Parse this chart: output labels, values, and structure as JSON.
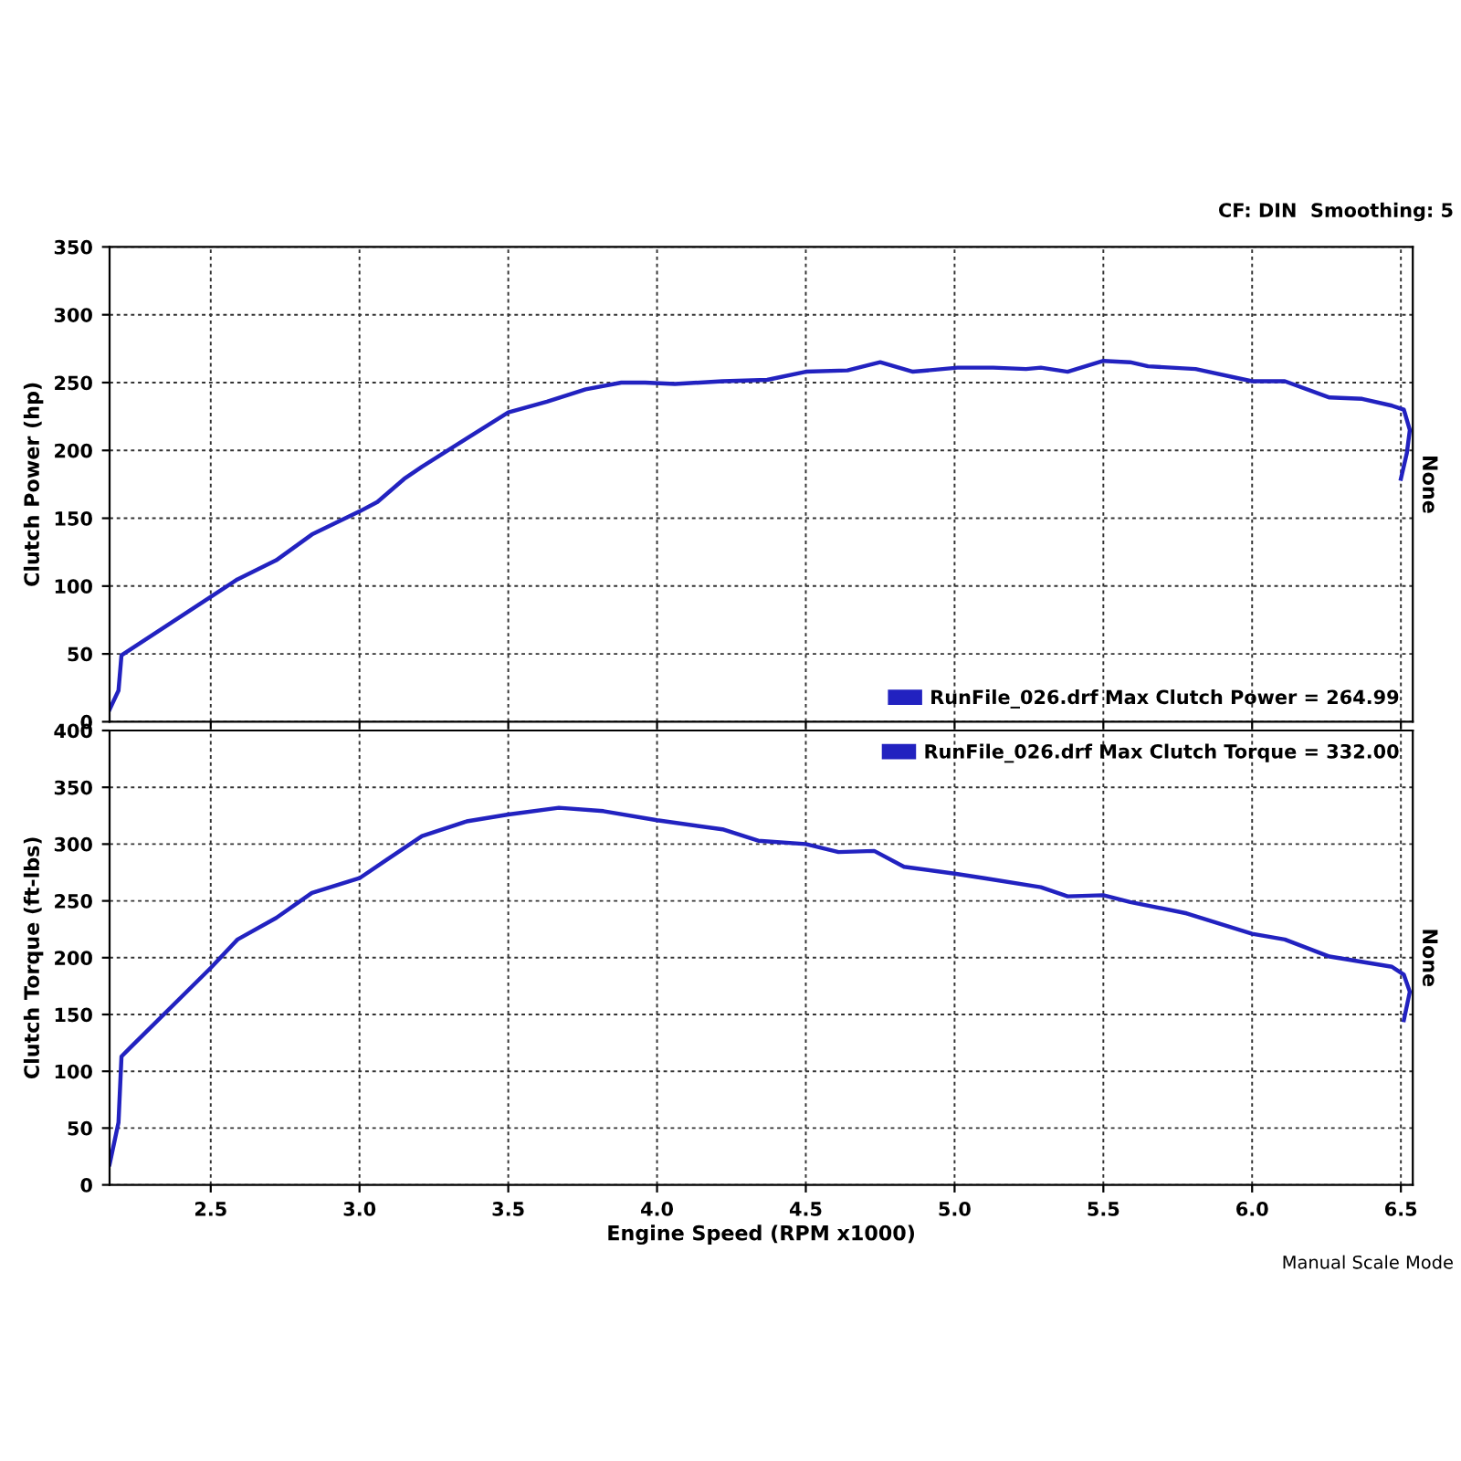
{
  "chart_data": [
    {
      "type": "line",
      "ylabel": "Clutch Power (hp)",
      "y2label": "None",
      "annotations": [
        "CF: DIN  Smoothing: 5"
      ],
      "xlim": [
        2.16,
        6.54
      ],
      "xticks": [
        2.5,
        3,
        3.5,
        4,
        4.5,
        5,
        5.5,
        6,
        6.5
      ],
      "ylim": [
        0,
        350
      ],
      "yticks": [
        0,
        50,
        100,
        150,
        200,
        250,
        300,
        350
      ],
      "tick_labels": "y",
      "grid": true,
      "legend": "bottom right",
      "marker": "none",
      "line_style": "solid",
      "series": [
        {
          "name": "RunFile_026.drf Max Clutch Power = 264.99",
          "color": "#2222c0",
          "x": [
            2.16,
            2.19,
            2.2,
            2.5,
            2.59,
            2.72,
            2.84,
            3.0,
            3.06,
            3.15,
            3.21,
            3.5,
            3.63,
            3.76,
            3.88,
            3.96,
            4.06,
            4.22,
            4.37,
            4.5,
            4.64,
            4.75,
            4.86,
            5.01,
            5.13,
            5.24,
            5.29,
            5.38,
            5.5,
            5.59,
            5.65,
            5.81,
            6.0,
            6.11,
            6.26,
            6.37,
            6.47,
            6.51,
            6.53,
            6.52,
            6.5
          ],
          "values": [
            9,
            23,
            49,
            92,
            105,
            119,
            138,
            155,
            162,
            179,
            188,
            228,
            236,
            245,
            250,
            250,
            249,
            251,
            252,
            258,
            259,
            265,
            258,
            261,
            261,
            260,
            261,
            258,
            266,
            265,
            262,
            260,
            251,
            251,
            239,
            238,
            233,
            230,
            215,
            198,
            179
          ]
        }
      ]
    },
    {
      "type": "line",
      "xlabel": "Engine Speed (RPM x1000)",
      "ylabel": "Clutch Torque (ft-lbs)",
      "y2label": "None",
      "annotations": [
        "Manual Scale Mode"
      ],
      "xlim": [
        2.16,
        6.54
      ],
      "xticks": [
        2.5,
        {
          "value": 3,
          "label": "3.0"
        },
        3.5,
        {
          "value": 4,
          "label": "4.0"
        },
        4.5,
        {
          "value": 5,
          "label": "5.0"
        },
        5.5,
        {
          "value": 6,
          "label": "6.0"
        },
        6.5
      ],
      "ylim": [
        0,
        400
      ],
      "yticks": [
        0,
        50,
        100,
        150,
        200,
        250,
        300,
        350,
        400
      ],
      "grid": true,
      "legend": "top right",
      "marker": "none",
      "line_style": "solid",
      "series": [
        {
          "name": "RunFile_026.drf Max Clutch Torque = 332.00",
          "color": "#2222c0",
          "x": [
            2.16,
            2.19,
            2.2,
            2.23,
            2.5,
            2.59,
            2.72,
            2.84,
            3.0,
            3.09,
            3.21,
            3.36,
            3.5,
            3.67,
            3.82,
            4.0,
            4.22,
            4.34,
            4.5,
            4.61,
            4.73,
            4.83,
            5.0,
            5.1,
            5.29,
            5.38,
            5.5,
            5.59,
            5.78,
            6.0,
            6.11,
            6.26,
            6.47,
            6.51,
            6.53,
            6.51
          ],
          "values": [
            18,
            55,
            113,
            121,
            191,
            216,
            235,
            257,
            270,
            286,
            307,
            320,
            326,
            332,
            329,
            321,
            313,
            303,
            300,
            293,
            294,
            280,
            274,
            270,
            262,
            254,
            255,
            249,
            239,
            221,
            216,
            201,
            192,
            185,
            170,
            145
          ]
        }
      ]
    }
  ]
}
